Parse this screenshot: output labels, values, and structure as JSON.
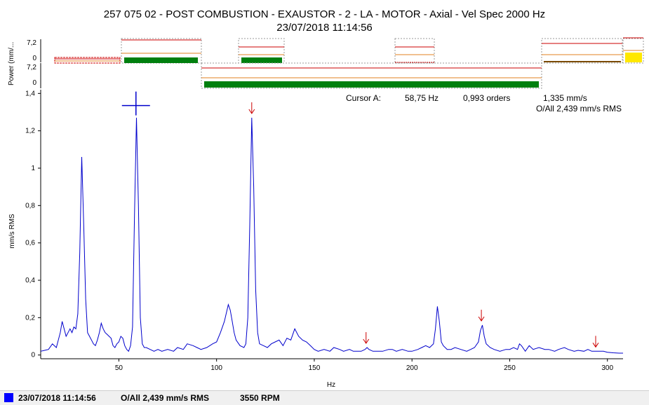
{
  "header": {
    "title": "257 075 02 - POST COMBUSTION - EXAUSTOR - 2 - LA - MOTOR - Axial - Vel Spec 2000 Hz",
    "datetime": "23/07/2018 11:14:56"
  },
  "power_strip": {
    "ylabel": "Power (mm/...",
    "row1_ticks": [
      "7,2",
      "0"
    ],
    "row2_ticks": [
      "7,2",
      "0"
    ]
  },
  "cursor": {
    "label": "Cursor A:",
    "freq": "58,75 Hz",
    "orders": "0,993 orders",
    "amp": "1,335 mm/s",
    "overall": "O/All 2,439 mm/s RMS",
    "x": 58.75,
    "y": 1.335
  },
  "status_bar": {
    "datetime": "23/07/2018 11:14:56",
    "overall": "O/All 2,439 mm/s RMS",
    "rpm": "3550 RPM"
  },
  "colors": {
    "series": "#0000cc",
    "marker": "#cc0000",
    "band_fill": "#007f0e",
    "band_line_red": "#cc0000",
    "band_line_orange": "#e08020",
    "band_yellow": "#ffe800",
    "legend_swatch": "#0000ff"
  },
  "chart_data": {
    "type": "line",
    "xlabel": "Hz",
    "ylabel": "mm/s RMS",
    "xlim": [
      10,
      308
    ],
    "ylim": [
      -0.02,
      1.42
    ],
    "xticks": [
      50,
      100,
      150,
      200,
      250,
      300
    ],
    "yticks": [
      0,
      0.2,
      0.4,
      0.6,
      0.8,
      1,
      1.2,
      1.4
    ],
    "ytick_labels": [
      "0",
      "0,2",
      "0,4",
      "0,6",
      "0,8",
      "1",
      "1,2",
      "1,4"
    ],
    "grid": false,
    "series": [
      {
        "x": [
          10,
          12,
          14,
          16,
          18,
          20,
          21,
          22,
          23,
          24,
          25,
          26,
          27,
          28,
          29,
          30,
          31,
          32,
          33,
          34,
          35,
          36,
          37,
          38,
          39,
          40,
          41,
          42,
          43,
          44,
          45,
          46,
          47,
          48,
          49,
          50,
          51,
          52,
          53,
          54,
          55,
          56,
          57,
          58,
          59,
          60,
          61,
          62,
          63,
          64,
          66,
          68,
          70,
          72,
          75,
          78,
          80,
          83,
          85,
          88,
          90,
          92,
          95,
          98,
          100,
          102,
          104,
          106,
          107,
          108,
          109,
          110,
          112,
          114,
          115,
          116,
          117,
          118,
          119,
          120,
          121,
          122,
          124,
          126,
          128,
          130,
          132,
          134,
          136,
          138,
          140,
          142,
          144,
          146,
          148,
          150,
          152,
          155,
          158,
          160,
          163,
          165,
          168,
          170,
          172,
          174,
          176,
          177,
          178,
          180,
          182,
          185,
          188,
          190,
          192,
          195,
          198,
          200,
          203,
          205,
          207,
          209,
          211,
          212,
          213,
          214,
          215,
          216,
          218,
          220,
          222,
          225,
          228,
          230,
          232,
          234,
          235,
          236,
          237,
          238,
          240,
          242,
          245,
          248,
          250,
          252,
          254,
          255,
          256,
          258,
          260,
          262,
          265,
          268,
          270,
          273,
          275,
          278,
          280,
          283,
          285,
          288,
          290,
          292,
          294,
          296,
          298,
          300,
          303,
          306,
          308
        ],
        "y": [
          0.02,
          0.025,
          0.03,
          0.06,
          0.04,
          0.12,
          0.18,
          0.14,
          0.1,
          0.12,
          0.14,
          0.12,
          0.15,
          0.14,
          0.22,
          0.55,
          1.06,
          0.7,
          0.3,
          0.12,
          0.1,
          0.08,
          0.06,
          0.05,
          0.08,
          0.12,
          0.17,
          0.14,
          0.12,
          0.11,
          0.1,
          0.09,
          0.05,
          0.04,
          0.06,
          0.07,
          0.1,
          0.09,
          0.05,
          0.03,
          0.02,
          0.05,
          0.15,
          0.75,
          1.27,
          0.8,
          0.2,
          0.06,
          0.04,
          0.04,
          0.03,
          0.02,
          0.03,
          0.02,
          0.03,
          0.02,
          0.04,
          0.03,
          0.06,
          0.05,
          0.04,
          0.03,
          0.04,
          0.06,
          0.07,
          0.12,
          0.18,
          0.27,
          0.24,
          0.18,
          0.12,
          0.08,
          0.05,
          0.04,
          0.06,
          0.2,
          0.7,
          1.27,
          0.9,
          0.35,
          0.12,
          0.06,
          0.05,
          0.04,
          0.06,
          0.07,
          0.08,
          0.05,
          0.09,
          0.08,
          0.14,
          0.1,
          0.08,
          0.07,
          0.05,
          0.03,
          0.02,
          0.03,
          0.02,
          0.04,
          0.03,
          0.02,
          0.03,
          0.02,
          0.02,
          0.02,
          0.03,
          0.04,
          0.03,
          0.02,
          0.02,
          0.02,
          0.03,
          0.03,
          0.02,
          0.03,
          0.02,
          0.02,
          0.03,
          0.04,
          0.05,
          0.04,
          0.06,
          0.14,
          0.26,
          0.18,
          0.07,
          0.05,
          0.03,
          0.03,
          0.04,
          0.03,
          0.02,
          0.03,
          0.04,
          0.07,
          0.13,
          0.16,
          0.1,
          0.06,
          0.04,
          0.03,
          0.02,
          0.03,
          0.03,
          0.04,
          0.03,
          0.06,
          0.05,
          0.02,
          0.05,
          0.03,
          0.04,
          0.03,
          0.03,
          0.02,
          0.03,
          0.04,
          0.03,
          0.02,
          0.025,
          0.02,
          0.03,
          0.02,
          0.02,
          0.02,
          0.02,
          0.015,
          0.012,
          0.01,
          0.01
        ]
      }
    ],
    "peak_markers_x": [
      118,
      176.5,
      235.5,
      294
    ]
  }
}
